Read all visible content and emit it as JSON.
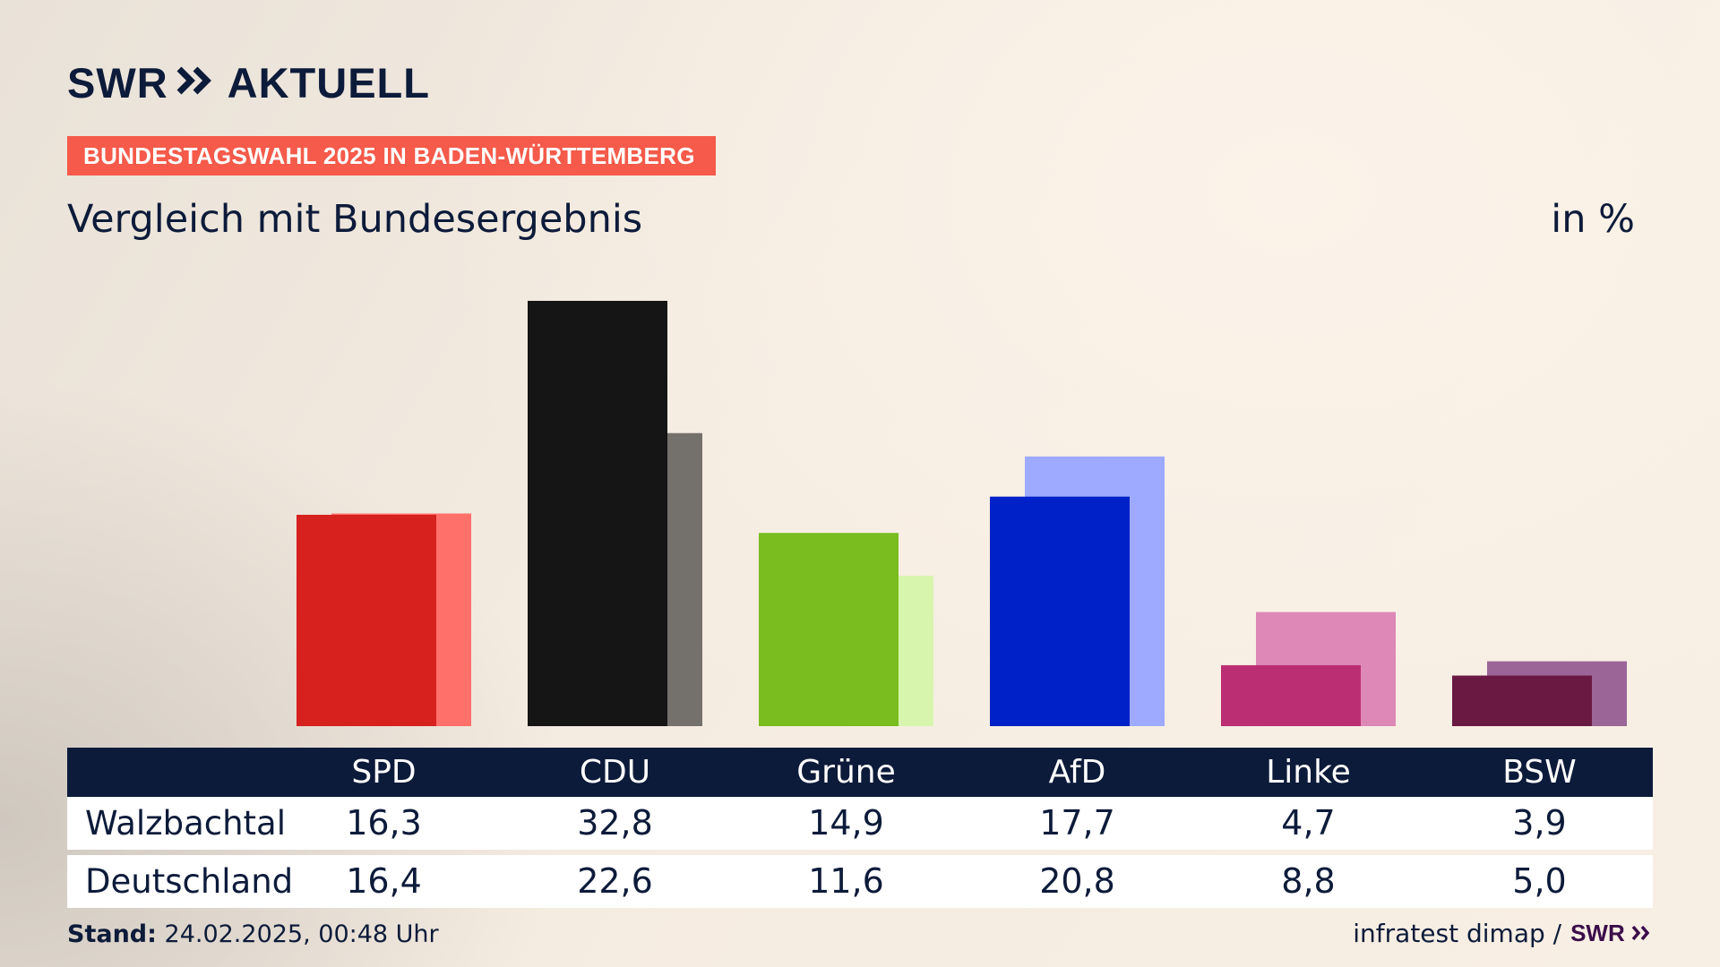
{
  "header": {
    "brand_left": "SWR",
    "brand_right": "AKTUELL",
    "tagline": "BUNDESTAGSWAHL 2025 IN BADEN-WÜRTTEMBERG",
    "subtitle": "Vergleich mit Bundesergebnis",
    "unit": "in %"
  },
  "colors": {
    "navy": "#0d1b3a",
    "tagline_bg": "#f55a4a"
  },
  "chart_data": {
    "type": "bar",
    "title": "Vergleich mit Bundesergebnis",
    "ylabel": "in %",
    "ylim": [
      0,
      32.8
    ],
    "categories": [
      "SPD",
      "CDU",
      "Grüne",
      "AfD",
      "Linke",
      "BSW"
    ],
    "series": [
      {
        "name": "Walzbachtal",
        "values": [
          16.3,
          32.8,
          14.9,
          17.7,
          4.7,
          3.9
        ],
        "labels": [
          "16,3",
          "32,8",
          "14,9",
          "17,7",
          "4,7",
          "3,9"
        ],
        "colors": [
          "#d6211f",
          "#151515",
          "#79bd1e",
          "#0020c8",
          "#bc2e74",
          "#6a1a42"
        ]
      },
      {
        "name": "Deutschland",
        "values": [
          16.4,
          22.6,
          11.6,
          20.8,
          8.8,
          5.0
        ],
        "labels": [
          "16,4",
          "22,6",
          "11,6",
          "20,8",
          "8,8",
          "5,0"
        ],
        "colors": [
          "#ff706a",
          "#74716d",
          "#d8f5ad",
          "#9daaff",
          "#de88b8",
          "#9c6598"
        ]
      }
    ]
  },
  "table": {
    "row_labels": [
      "Walzbachtal",
      "Deutschland"
    ]
  },
  "footer": {
    "stand_label": "Stand:",
    "stand_value": "24.02.2025, 00:48 Uhr",
    "source": "infratest dimap /",
    "source_logo": "SWR"
  }
}
